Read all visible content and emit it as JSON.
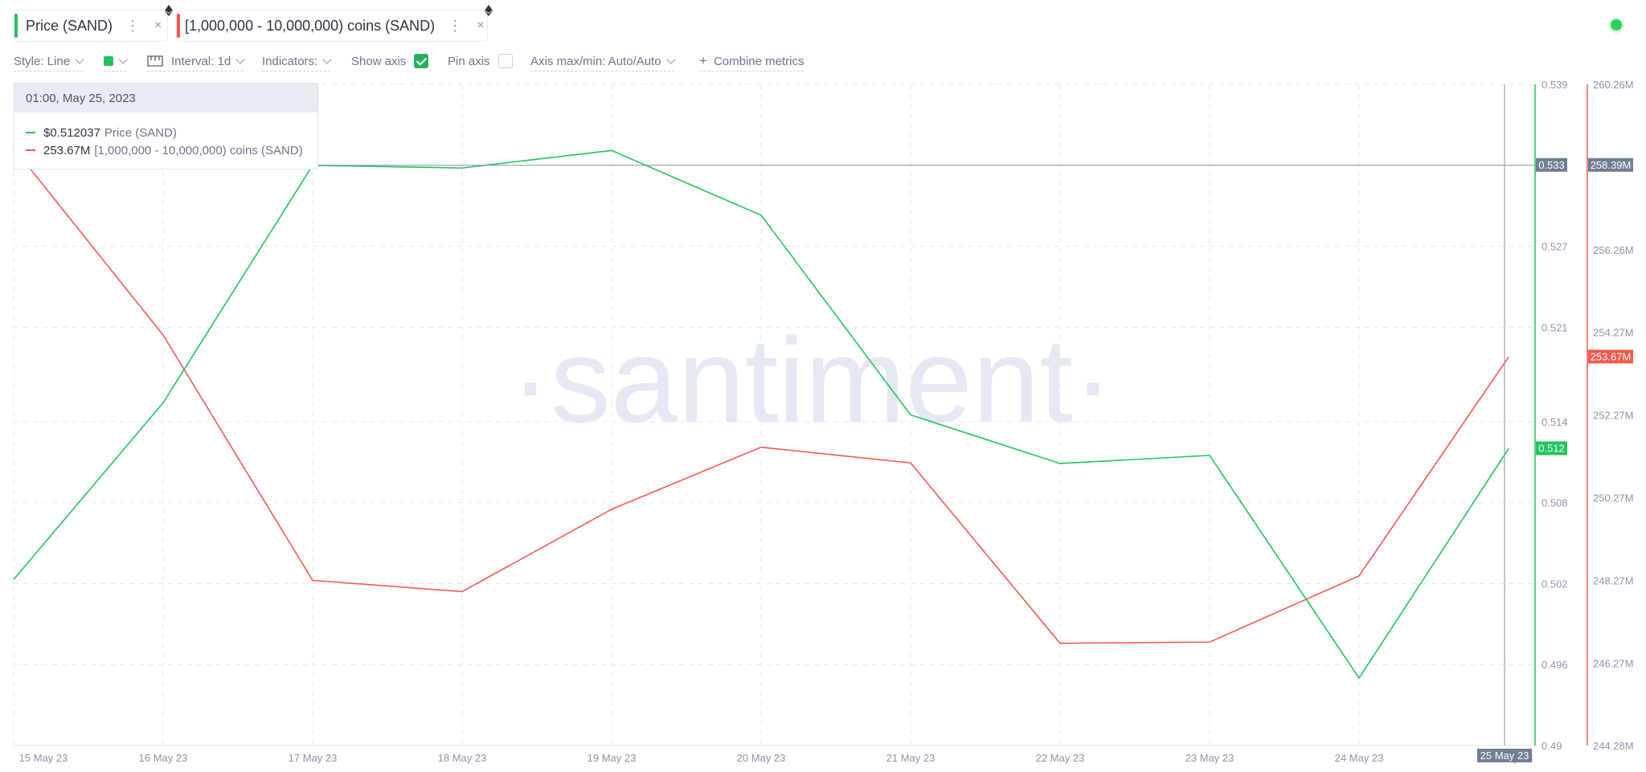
{
  "tabs": [
    {
      "label": "Price (SAND)",
      "color": "#21c45d",
      "dots": "⋮",
      "close": "×"
    },
    {
      "label": "[1,000,000 - 10,000,000) coins (SAND)",
      "color": "#f5584f",
      "dots": "⋮",
      "close": "×"
    }
  ],
  "toolbar": {
    "style": "Style: Line",
    "color_swatch": "#21c45d",
    "interval": "Interval: 1d",
    "indicators": "Indicators:",
    "show_axis": "Show axis",
    "pin_axis": "Pin axis",
    "axis_maxmin": "Axis max/min: Auto/Auto",
    "combine": "Combine metrics",
    "combine_icon": "+"
  },
  "status": {
    "color": "#2bcf61"
  },
  "tooltip": {
    "date": "01:00, May 25, 2023",
    "rows": [
      {
        "value": "$0.512037",
        "name": "Price (SAND)",
        "color": "#21c45d"
      },
      {
        "value": "253.67M",
        "name": "[1,000,000 - 10,000,000) coins (SAND)",
        "color": "#f5584f"
      }
    ]
  },
  "watermark": "·santiment·",
  "chart_data": {
    "type": "line",
    "x": [
      "15 May 23",
      "16 May 23",
      "17 May 23",
      "18 May 23",
      "19 May 23",
      "20 May 23",
      "21 May 23",
      "22 May 23",
      "23 May 23",
      "24 May 23",
      "25 May 23"
    ],
    "x_tick_labels": [
      "15 May 23",
      "16 May 23",
      "17 May 23",
      "18 May 23",
      "19 May 23",
      "20 May 23",
      "21 May 23",
      "22 May 23",
      "23 May 23",
      "24 May 23",
      "25 May 23"
    ],
    "hover_label": "25 May 23",
    "series": [
      {
        "name": "Price (SAND)",
        "axis": "left",
        "color": "#21c45d",
        "values": [
          0.5023,
          0.5154,
          0.533,
          0.5328,
          0.5341,
          0.5293,
          0.5145,
          0.5109,
          0.5115,
          0.495,
          0.512
        ]
      },
      {
        "name": "[1,000,000 - 10,000,000) coins (SAND)",
        "axis": "right",
        "color": "#f5584f",
        "values": [
          258.72,
          254.2,
          248.27,
          248.0,
          249.99,
          251.49,
          251.11,
          246.75,
          246.78,
          248.38,
          253.67
        ]
      }
    ],
    "y1": {
      "ticks": [
        "0.539",
        "0.527",
        "0.521",
        "0.514",
        "0.508",
        "0.502",
        "0.496",
        "0.49"
      ],
      "ylim": [
        0.49,
        0.539
      ],
      "current": "0.512",
      "crosshair": "0.533"
    },
    "y2": {
      "ticks": [
        "260.26M",
        "256.26M",
        "254.27M",
        "252.27M",
        "250.27M",
        "248.27M",
        "246.27M",
        "244.28M"
      ],
      "ylim": [
        244.28,
        260.26
      ],
      "current": "253.67M",
      "crosshair": "258.39M"
    },
    "grid": true
  }
}
